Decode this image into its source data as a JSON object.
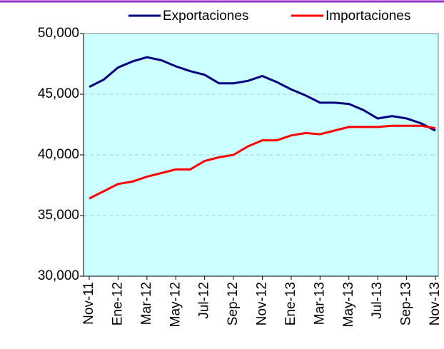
{
  "chart_data": {
    "type": "line",
    "categories": [
      "Nov-11",
      null,
      "Ene-12",
      null,
      "Mar-12",
      null,
      "May-12",
      null,
      "Jul-12",
      null,
      "Sep-12",
      null,
      "Nov-12",
      null,
      "Ene-13",
      null,
      "Mar-13",
      null,
      "May-13",
      null,
      "Jul-13",
      null,
      "Sep-13",
      null,
      "Nov-13"
    ],
    "series": [
      {
        "name": "Exportaciones",
        "color": "#000080",
        "values": [
          45600,
          46200,
          47200,
          47700,
          48050,
          47800,
          47300,
          46900,
          46600,
          45900,
          45900,
          46100,
          46500,
          46000,
          45400,
          44900,
          44300,
          44300,
          44200,
          43700,
          43000,
          43200,
          43000,
          42600,
          42000
        ]
      },
      {
        "name": "Importaciones",
        "color": "#ff0000",
        "values": [
          36400,
          37000,
          37600,
          37800,
          38200,
          38500,
          38800,
          38800,
          39500,
          39800,
          40000,
          40700,
          41200,
          41200,
          41600,
          41800,
          41700,
          42000,
          42300,
          42300,
          42300,
          42400,
          42400,
          42400,
          42200
        ]
      }
    ],
    "ylim": [
      30000,
      50000
    ],
    "yticks": [
      {
        "value": 30000,
        "label": "30,000"
      },
      {
        "value": 35000,
        "label": "35,000"
      },
      {
        "value": 40000,
        "label": "40,000"
      },
      {
        "value": 45000,
        "label": "45,000"
      },
      {
        "value": 50000,
        "label": "50,000"
      }
    ],
    "grid": true,
    "legend": "top"
  }
}
